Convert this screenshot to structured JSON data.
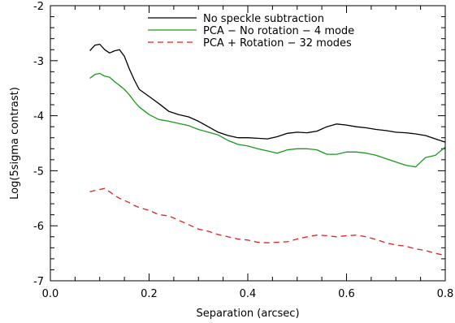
{
  "chart_data": {
    "type": "line",
    "title": "",
    "xlabel": "Separation (arcsec)",
    "ylabel": "Log(5sigma contrast)",
    "xlim": [
      0.0,
      0.8
    ],
    "ylim": [
      -7.0,
      -2.0
    ],
    "x_ticks": [
      "0.0",
      "0.2",
      "0.4",
      "0.6",
      "0.8"
    ],
    "y_ticks": [
      "-7",
      "-6",
      "-5",
      "-4",
      "-3",
      "-2"
    ],
    "x_tick_values": [
      0.0,
      0.2,
      0.4,
      0.6,
      0.8
    ],
    "y_tick_values": [
      -7,
      -6,
      -5,
      -4,
      -3,
      -2
    ],
    "grid": false,
    "legend_position": "top-center",
    "series": [
      {
        "name": "No speckle subtraction",
        "color": "#000000",
        "dash": "solid",
        "x": [
          0.08,
          0.09,
          0.1,
          0.11,
          0.12,
          0.13,
          0.14,
          0.15,
          0.16,
          0.17,
          0.18,
          0.2,
          0.22,
          0.24,
          0.26,
          0.28,
          0.3,
          0.32,
          0.34,
          0.36,
          0.38,
          0.4,
          0.42,
          0.44,
          0.46,
          0.48,
          0.5,
          0.52,
          0.54,
          0.56,
          0.58,
          0.6,
          0.62,
          0.64,
          0.66,
          0.68,
          0.7,
          0.72,
          0.74,
          0.76,
          0.78,
          0.8
        ],
        "y": [
          -2.82,
          -2.72,
          -2.7,
          -2.8,
          -2.86,
          -2.82,
          -2.8,
          -2.92,
          -3.15,
          -3.35,
          -3.52,
          -3.65,
          -3.78,
          -3.92,
          -3.98,
          -4.02,
          -4.1,
          -4.2,
          -4.3,
          -4.36,
          -4.4,
          -4.4,
          -4.41,
          -4.42,
          -4.38,
          -4.32,
          -4.3,
          -4.31,
          -4.28,
          -4.2,
          -4.15,
          -4.17,
          -4.2,
          -4.22,
          -4.25,
          -4.27,
          -4.3,
          -4.31,
          -4.33,
          -4.36,
          -4.42,
          -4.48
        ]
      },
      {
        "name": "PCA − No rotation − 4 mode",
        "color": "#1a9a1a",
        "dash": "solid",
        "x": [
          0.08,
          0.09,
          0.1,
          0.11,
          0.12,
          0.13,
          0.14,
          0.15,
          0.16,
          0.17,
          0.18,
          0.2,
          0.22,
          0.24,
          0.26,
          0.28,
          0.3,
          0.32,
          0.34,
          0.36,
          0.38,
          0.4,
          0.42,
          0.44,
          0.46,
          0.48,
          0.5,
          0.52,
          0.54,
          0.56,
          0.58,
          0.6,
          0.62,
          0.64,
          0.66,
          0.68,
          0.7,
          0.72,
          0.74,
          0.76,
          0.78,
          0.8
        ],
        "y": [
          -3.32,
          -3.25,
          -3.23,
          -3.28,
          -3.3,
          -3.38,
          -3.45,
          -3.52,
          -3.62,
          -3.74,
          -3.84,
          -3.98,
          -4.07,
          -4.1,
          -4.14,
          -4.18,
          -4.25,
          -4.3,
          -4.35,
          -4.45,
          -4.52,
          -4.55,
          -4.6,
          -4.64,
          -4.68,
          -4.62,
          -4.6,
          -4.6,
          -4.62,
          -4.7,
          -4.7,
          -4.66,
          -4.66,
          -4.68,
          -4.72,
          -4.78,
          -4.84,
          -4.9,
          -4.93,
          -4.76,
          -4.72,
          -4.57
        ]
      },
      {
        "name": "PCA + Rotation − 32 modes",
        "color": "#e02020",
        "dash": "dashed",
        "x": [
          0.08,
          0.09,
          0.1,
          0.11,
          0.12,
          0.13,
          0.14,
          0.15,
          0.16,
          0.17,
          0.18,
          0.2,
          0.22,
          0.24,
          0.26,
          0.28,
          0.3,
          0.32,
          0.34,
          0.36,
          0.38,
          0.4,
          0.42,
          0.44,
          0.46,
          0.48,
          0.5,
          0.52,
          0.54,
          0.56,
          0.58,
          0.6,
          0.62,
          0.64,
          0.66,
          0.68,
          0.7,
          0.72,
          0.74,
          0.76,
          0.78,
          0.8
        ],
        "y": [
          -5.38,
          -5.36,
          -5.34,
          -5.32,
          -5.38,
          -5.45,
          -5.5,
          -5.54,
          -5.58,
          -5.63,
          -5.67,
          -5.72,
          -5.8,
          -5.82,
          -5.9,
          -5.98,
          -6.06,
          -6.1,
          -6.16,
          -6.2,
          -6.24,
          -6.26,
          -6.3,
          -6.31,
          -6.3,
          -6.29,
          -6.24,
          -6.2,
          -6.17,
          -6.18,
          -6.2,
          -6.18,
          -6.17,
          -6.2,
          -6.25,
          -6.31,
          -6.35,
          -6.37,
          -6.42,
          -6.45,
          -6.5,
          -6.54
        ]
      }
    ]
  }
}
